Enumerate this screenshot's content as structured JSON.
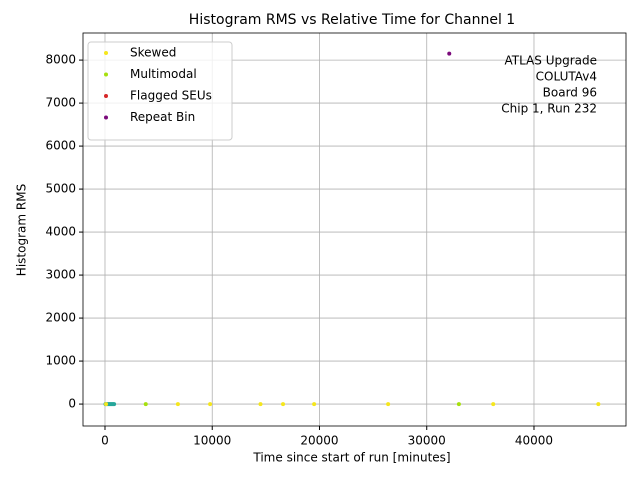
{
  "chart_data": {
    "type": "scatter",
    "title": "Histogram RMS vs Relative Time for Channel 1",
    "x_label": "Time since start of run [minutes]",
    "y_label": "Histogram RMS",
    "annotations": [
      "ATLAS Upgrade",
      "COLUTAv4",
      "Board 96",
      "Chip 1, Run 232"
    ],
    "xlim": [
      -2050,
      48580
    ],
    "ylim": [
      -510,
      8630
    ],
    "xticks": [
      0,
      10000,
      20000,
      30000,
      40000
    ],
    "yticks": [
      0,
      1000,
      2000,
      3000,
      4000,
      5000,
      6000,
      7000,
      8000
    ],
    "grid": true,
    "legend": "upper left",
    "series": [
      {
        "color": "#26a69a",
        "x": [
          50,
          150,
          250,
          350,
          450,
          550,
          650,
          750,
          850
        ],
        "y": [
          0,
          0,
          0,
          0,
          0,
          0,
          0,
          0,
          0
        ]
      },
      {
        "name": "Skewed",
        "color": "#f5e61d",
        "x": [
          100,
          6800,
          9800,
          14500,
          16600,
          19500,
          26400,
          36200,
          46000
        ],
        "y": [
          0,
          0,
          0,
          0,
          0,
          0,
          0,
          0,
          0
        ]
      },
      {
        "name": "Multimodal",
        "color": "#a6e00c",
        "x": [
          3800,
          33000
        ],
        "y": [
          0,
          0
        ]
      },
      {
        "name": "Flagged SEUs",
        "color": "#d62728",
        "x": [],
        "y": []
      },
      {
        "name": "Repeat Bin",
        "color": "#7b0a7b",
        "x": [
          32100
        ],
        "y": [
          8150
        ]
      }
    ]
  }
}
